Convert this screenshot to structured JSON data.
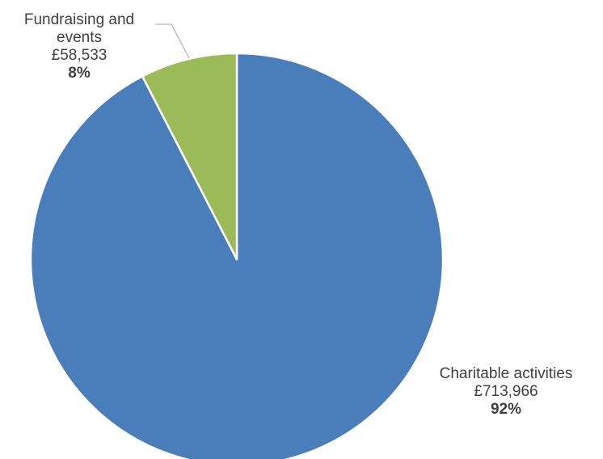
{
  "chart_data": {
    "type": "pie",
    "slices": [
      {
        "name": "Charitable activities",
        "value": 713966,
        "value_label": "£713,966",
        "percent_label": "92%",
        "color": "#4a7ebb"
      },
      {
        "name": "Fundraising and events",
        "value": 58533,
        "value_label": "£58,533",
        "percent_label": "8%",
        "color": "#9bbb59"
      }
    ],
    "slice_border_color": "#ffffff",
    "leader_line_color": "#a6a6a6",
    "start_angle": "12 o'clock",
    "direction": "clockwise",
    "legend": "none"
  },
  "labels": {
    "fundraising": {
      "name_line1": "Fundraising and",
      "name_line2": "events",
      "amount": "£58,533",
      "percent": "8%"
    },
    "charitable": {
      "name": "Charitable activities",
      "amount": "£713,966",
      "percent": "92%"
    }
  }
}
